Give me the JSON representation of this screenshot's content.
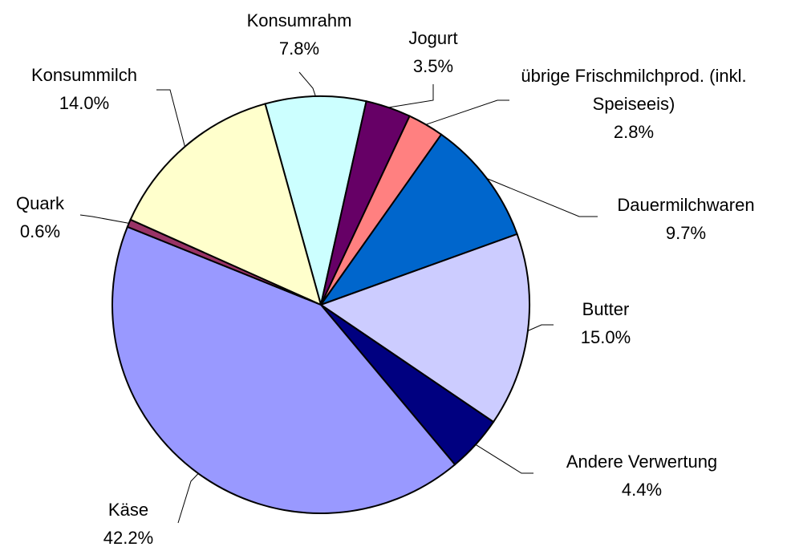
{
  "chart_data": {
    "type": "pie",
    "categories": [
      "Konsumrahm",
      "Jogurt",
      "übrige Frischmilchprod. (inkl. Speiseeis)",
      "Dauermilchwaren",
      "Butter",
      "Andere Verwertung",
      "Käse",
      "Quark",
      "Konsummilch"
    ],
    "values": [
      7.8,
      3.5,
      2.8,
      9.7,
      15.0,
      4.4,
      42.2,
      0.6,
      14.0
    ],
    "value_labels": [
      "7.8%",
      "3.5%",
      "2.8%",
      "9.7%",
      "15.0%",
      "4.4%",
      "42.2%",
      "0.6%",
      "14.0%"
    ],
    "colors": [
      "#ccffff",
      "#660066",
      "#ff8080",
      "#0066cc",
      "#ccccff",
      "#000080",
      "#9999ff",
      "#993366",
      "#ffffcc"
    ]
  }
}
